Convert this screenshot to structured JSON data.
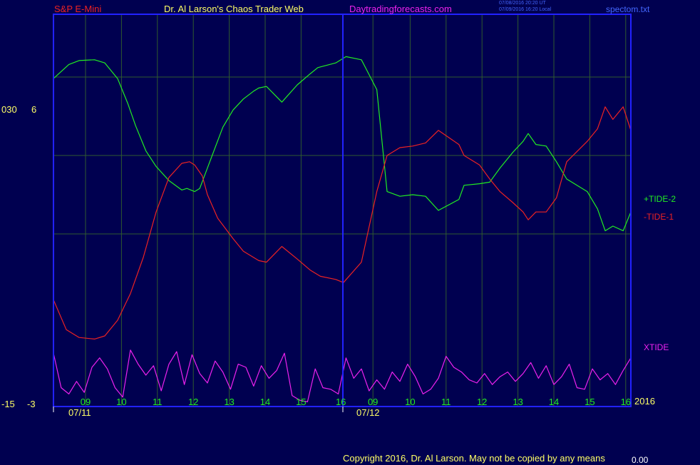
{
  "header": {
    "symbol": "S&P E-Mini",
    "author": "Dr. Al Larson's Chaos Trader Web",
    "site": "Daytradingforecasts.com",
    "timestamp_1": "07/08/2016 20:20 UT",
    "timestamp_2": "07/09/2016 16:20 Local",
    "file": "spectom.txt"
  },
  "left_axis": {
    "top_left": "030",
    "top_right": "6",
    "bottom_left": "-15",
    "bottom_right": "-3"
  },
  "footer": {
    "copyright": "Copyright 2016, Dr. Al Larson. May not be copied by any means",
    "corner_value": "0.00",
    "year": "2016"
  },
  "colors": {
    "background": "#000050",
    "frame": "#2222ff",
    "grid": "#2f5a2f",
    "green": "#22ee22",
    "red": "#ee2222",
    "magenta": "#ee22ee",
    "yellow_text": "#ffff66"
  },
  "chart_data": {
    "type": "line",
    "x_tick_labels": [
      "09",
      "10",
      "11",
      "12",
      "13",
      "14",
      "15",
      "16",
      "09",
      "10",
      "11",
      "12",
      "13",
      "14",
      "15",
      "16"
    ],
    "date_labels": [
      "07/11",
      "07/12"
    ],
    "series": [
      {
        "name": "+TIDE-2",
        "color": "#22ee22",
        "x": [
          0,
          0.6,
          1,
          1.6,
          2,
          2.5,
          2.9,
          3.2,
          3.6,
          4,
          4.5,
          5,
          5.2,
          5.5,
          5.7,
          6,
          6.3,
          6.6,
          7,
          7.4,
          7.8,
          8,
          8.3,
          8.9,
          9.5,
          10,
          10.3,
          11,
          11.4,
          12,
          12.6,
          13,
          13.5,
          14,
          14.5,
          15,
          15.8,
          16,
          16.6,
          17,
          17.4,
          17.9,
          18.3,
          18.5,
          18.8,
          19.2,
          19.6,
          20,
          20.8,
          21.2,
          21.5,
          21.8,
          22.2,
          22.5
        ],
        "y": [
          5.9,
          6.8,
          7.05,
          7.1,
          6.9,
          5.9,
          4.3,
          2.9,
          1.3,
          0.3,
          -0.6,
          -1.2,
          -1.1,
          -1.3,
          -1.1,
          0.2,
          1.5,
          2.8,
          3.9,
          4.6,
          5.1,
          5.3,
          5.4,
          4.4,
          5.5,
          6.2,
          6.6,
          6.9,
          7.3,
          7.1,
          5.2,
          -1.3,
          -1.6,
          -1.5,
          -1.6,
          -2.5,
          -1.8,
          -0.9,
          -0.8,
          -0.7,
          0.2,
          1.2,
          1.9,
          2.4,
          1.7,
          1.6,
          0.6,
          -0.5,
          -1.3,
          -2.4,
          -3.8,
          -3.5,
          -3.8,
          -2.6
        ]
      },
      {
        "name": "-TIDE-1",
        "color": "#ee2222",
        "x": [
          0,
          0.5,
          1,
          1.6,
          2,
          2.5,
          3,
          3.5,
          4,
          4.5,
          5,
          5.3,
          5.5,
          5.8,
          6,
          6.4,
          7,
          7.4,
          7.8,
          8,
          8.3,
          8.9,
          9.5,
          10,
          10.4,
          11,
          11.3,
          12,
          12.6,
          13,
          13.5,
          14,
          14.5,
          15,
          15.8,
          16,
          16.6,
          17,
          17.4,
          17.9,
          18.3,
          18.5,
          18.8,
          19.2,
          19.6,
          20,
          20.8,
          21.2,
          21.5,
          21.8,
          22.2,
          22.5
        ],
        "y": [
          -8.2,
          -10.1,
          -10.6,
          -10.7,
          -10.5,
          -9.5,
          -7.8,
          -5.5,
          -2.6,
          -0.4,
          0.5,
          0.6,
          0.4,
          -0.3,
          -1.5,
          -3.0,
          -4.3,
          -5.1,
          -5.5,
          -5.7,
          -5.8,
          -4.8,
          -5.6,
          -6.3,
          -6.7,
          -6.9,
          -7.1,
          -5.8,
          -1.3,
          1.0,
          1.5,
          1.6,
          1.8,
          2.6,
          1.7,
          1.0,
          0.4,
          -0.5,
          -1.3,
          -2.0,
          -2.6,
          -3.1,
          -2.6,
          -2.6,
          -1.7,
          0.6,
          1.9,
          2.7,
          4.1,
          3.3,
          4.1,
          2.6
        ]
      },
      {
        "name": "XTIDE",
        "color": "#ee22ee",
        "x": [
          0,
          0.3,
          0.6,
          0.9,
          1.2,
          1.5,
          1.8,
          2.1,
          2.4,
          2.7,
          3,
          3.3,
          3.6,
          3.9,
          4.2,
          4.5,
          4.8,
          5.1,
          5.4,
          5.7,
          6,
          6.3,
          6.6,
          6.9,
          7.2,
          7.5,
          7.8,
          8.1,
          8.4,
          8.7,
          9,
          9.3,
          9.6,
          9.9,
          10.2,
          10.5,
          10.8,
          11.1,
          11.4,
          11.7,
          12,
          12.3,
          12.6,
          12.9,
          13.2,
          13.5,
          13.8,
          14.1,
          14.4,
          14.7,
          15,
          15.3,
          15.6,
          15.9,
          16.2,
          16.5,
          16.8,
          17.1,
          17.4,
          17.7,
          18,
          18.3,
          18.6,
          18.9,
          19.2,
          19.5,
          19.8,
          20.1,
          20.4,
          20.7,
          21,
          21.3,
          21.6,
          21.9,
          22.2,
          22.5
        ],
        "y": [
          -11.6,
          -13.8,
          -14.2,
          -13.4,
          -14.1,
          -12.5,
          -11.9,
          -12.6,
          -13.8,
          -14.4,
          -11.4,
          -12.3,
          -13.0,
          -12.4,
          -14.0,
          -12.3,
          -11.5,
          -13.6,
          -11.7,
          -12.9,
          -13.5,
          -12.1,
          -12.8,
          -13.9,
          -12.3,
          -12.5,
          -13.7,
          -12.4,
          -13.2,
          -12.7,
          -11.6,
          -14.3,
          -14.6,
          -14.7,
          -12.6,
          -13.8,
          -13.9,
          -14.2,
          -11.9,
          -13.2,
          -12.6,
          -14.0,
          -13.3,
          -13.9,
          -12.8,
          -13.4,
          -12.3,
          -13.1,
          -14.2,
          -13.9,
          -13.2,
          -11.8,
          -12.5,
          -12.8,
          -13.3,
          -13.5,
          -12.9,
          -13.6,
          -13.1,
          -12.8,
          -13.4,
          -12.9,
          -12.2,
          -13.2,
          -12.4,
          -13.6,
          -13.1,
          -12.3,
          -13.8,
          -13.9,
          -12.6,
          -13.3,
          -12.9,
          -13.6,
          -12.7,
          -11.9
        ]
      }
    ]
  }
}
